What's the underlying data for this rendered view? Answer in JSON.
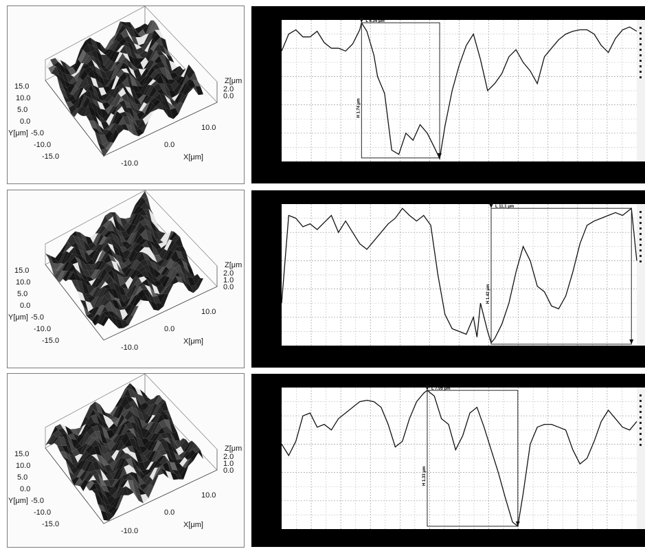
{
  "panels": [
    {
      "surface": {
        "y_label": "Y[μm]",
        "x_label": "X[μm]",
        "z_label": "Z[μm",
        "y_ticks": [
          "15.0",
          "10.0",
          "5.0",
          "0.0",
          "-5.0",
          "-10.0",
          "-15.0"
        ],
        "x_ticks": [
          "-10.0",
          "0.0",
          "10.0"
        ],
        "z_ticks": [
          "2.0",
          "0.0"
        ]
      },
      "profile": {
        "length_label": "L  6.34 μm",
        "height_label": "H  1.74 μm",
        "ylim": [
          0,
          1
        ],
        "xlim": [
          0,
          1
        ],
        "marker": {
          "x0": 0.225,
          "x1": 0.445,
          "y_top": 0.98,
          "y_bottom": 0.025
        },
        "x": [
          0,
          0.02,
          0.04,
          0.06,
          0.08,
          0.1,
          0.12,
          0.14,
          0.16,
          0.18,
          0.2,
          0.22,
          0.225,
          0.24,
          0.26,
          0.27,
          0.29,
          0.31,
          0.33,
          0.35,
          0.37,
          0.39,
          0.41,
          0.43,
          0.445,
          0.46,
          0.48,
          0.5,
          0.52,
          0.54,
          0.56,
          0.58,
          0.6,
          0.62,
          0.64,
          0.66,
          0.68,
          0.7,
          0.72,
          0.74,
          0.76,
          0.78,
          0.8,
          0.82,
          0.84,
          0.86,
          0.88,
          0.9,
          0.92,
          0.94,
          0.96,
          0.98,
          1.0
        ],
        "y": [
          0.78,
          0.9,
          0.93,
          0.88,
          0.88,
          0.92,
          0.84,
          0.8,
          0.8,
          0.78,
          0.83,
          0.93,
          0.98,
          0.92,
          0.75,
          0.6,
          0.48,
          0.08,
          0.05,
          0.2,
          0.15,
          0.26,
          0.2,
          0.1,
          0.02,
          0.25,
          0.5,
          0.68,
          0.82,
          0.9,
          0.72,
          0.5,
          0.55,
          0.62,
          0.74,
          0.79,
          0.7,
          0.64,
          0.55,
          0.74,
          0.8,
          0.86,
          0.9,
          0.92,
          0.93,
          0.93,
          0.9,
          0.82,
          0.77,
          0.87,
          0.93,
          0.95,
          0.92
        ]
      }
    },
    {
      "surface": {
        "y_label": "Y[μm]",
        "x_label": "X[μm]",
        "z_label": "Z[μm",
        "y_ticks": [
          "15.0",
          "10.0",
          "5.0",
          "0.0",
          "-5.0",
          "-10.0",
          "-15.0"
        ],
        "x_ticks": [
          "-10.0",
          "0.0",
          "10.0"
        ],
        "z_ticks": [
          "2.0",
          "1.0",
          "0.0"
        ]
      },
      "profile": {
        "length_label": "L  11.1 μm",
        "height_label": "H  1.42 μm",
        "ylim": [
          0,
          1
        ],
        "xlim": [
          0,
          1
        ],
        "marker": {
          "x0": 0.59,
          "x1": 0.985,
          "y_top": 0.97,
          "y_bottom": 0.01
        },
        "x": [
          0,
          0.02,
          0.04,
          0.06,
          0.08,
          0.1,
          0.12,
          0.14,
          0.16,
          0.18,
          0.2,
          0.22,
          0.24,
          0.26,
          0.28,
          0.3,
          0.32,
          0.34,
          0.36,
          0.38,
          0.4,
          0.42,
          0.44,
          0.46,
          0.48,
          0.5,
          0.52,
          0.54,
          0.55,
          0.56,
          0.58,
          0.59,
          0.6,
          0.62,
          0.64,
          0.66,
          0.68,
          0.7,
          0.72,
          0.74,
          0.76,
          0.78,
          0.8,
          0.82,
          0.84,
          0.86,
          0.88,
          0.9,
          0.92,
          0.94,
          0.96,
          0.985,
          1.0
        ],
        "y": [
          0.3,
          0.92,
          0.9,
          0.84,
          0.86,
          0.82,
          0.87,
          0.92,
          0.8,
          0.88,
          0.8,
          0.72,
          0.68,
          0.74,
          0.8,
          0.86,
          0.9,
          0.97,
          0.92,
          0.88,
          0.92,
          0.85,
          0.5,
          0.22,
          0.12,
          0.1,
          0.08,
          0.2,
          0.06,
          0.3,
          0.1,
          0.02,
          0.05,
          0.15,
          0.3,
          0.52,
          0.7,
          0.6,
          0.42,
          0.38,
          0.28,
          0.26,
          0.35,
          0.52,
          0.72,
          0.85,
          0.88,
          0.9,
          0.92,
          0.94,
          0.92,
          0.97,
          0.6
        ]
      }
    },
    {
      "surface": {
        "y_label": "Y[μm]",
        "x_label": "X[μm]",
        "z_label": "Z[μm",
        "y_ticks": [
          "15.0",
          "10.0",
          "5.0",
          "0.0",
          "-5.0",
          "-10.0",
          "-15.0"
        ],
        "x_ticks": [
          "-10.0",
          "0.0",
          "10.0"
        ],
        "z_ticks": [
          "2.0",
          "1.0",
          "0.0"
        ]
      },
      "profile": {
        "length_label": "L  7.05 μm",
        "height_label": "H  1.33 μm",
        "ylim": [
          0,
          1
        ],
        "xlim": [
          0,
          1
        ],
        "marker": {
          "x0": 0.41,
          "x1": 0.665,
          "y_top": 0.98,
          "y_bottom": 0.02
        },
        "x": [
          0,
          0.02,
          0.04,
          0.06,
          0.08,
          0.1,
          0.12,
          0.14,
          0.16,
          0.18,
          0.2,
          0.22,
          0.24,
          0.26,
          0.28,
          0.3,
          0.32,
          0.34,
          0.36,
          0.38,
          0.4,
          0.41,
          0.43,
          0.45,
          0.47,
          0.49,
          0.51,
          0.53,
          0.55,
          0.57,
          0.59,
          0.61,
          0.63,
          0.65,
          0.665,
          0.68,
          0.7,
          0.72,
          0.74,
          0.76,
          0.78,
          0.8,
          0.82,
          0.84,
          0.86,
          0.88,
          0.9,
          0.92,
          0.94,
          0.96,
          0.98,
          1.0
        ],
        "y": [
          0.6,
          0.52,
          0.62,
          0.8,
          0.82,
          0.72,
          0.74,
          0.7,
          0.78,
          0.82,
          0.86,
          0.9,
          0.91,
          0.9,
          0.86,
          0.74,
          0.58,
          0.62,
          0.78,
          0.9,
          0.96,
          0.98,
          0.94,
          0.78,
          0.74,
          0.56,
          0.66,
          0.82,
          0.86,
          0.72,
          0.56,
          0.4,
          0.22,
          0.05,
          0.02,
          0.25,
          0.6,
          0.72,
          0.74,
          0.74,
          0.72,
          0.7,
          0.56,
          0.46,
          0.5,
          0.62,
          0.76,
          0.84,
          0.78,
          0.72,
          0.7,
          0.76
        ]
      }
    }
  ]
}
